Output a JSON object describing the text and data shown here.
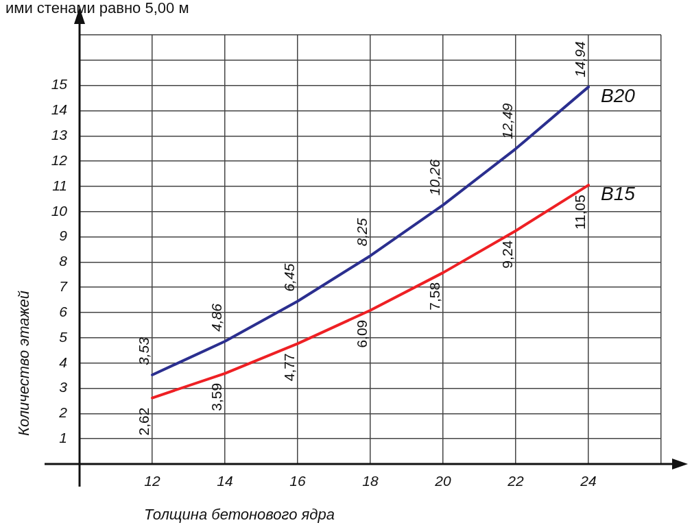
{
  "chart_data": {
    "type": "line",
    "title": "ими стенами равно 5,00 м",
    "xlabel": "Толщина бетонового ядра",
    "ylabel": "Количество этажей",
    "x": [
      12,
      14,
      16,
      18,
      20,
      22,
      24
    ],
    "series": [
      {
        "name": "B20",
        "color": "#2b2f8f",
        "values": [
          3.53,
          4.86,
          6.45,
          8.25,
          10.26,
          12.49,
          14.94
        ],
        "value_labels": [
          "3,53",
          "4,86",
          "6,45",
          "8,25",
          "10,26",
          "12,49",
          "14,94"
        ]
      },
      {
        "name": "B15",
        "color": "#ee2024",
        "values": [
          2.62,
          3.59,
          4.77,
          6.09,
          7.58,
          9.24,
          11.05
        ],
        "value_labels": [
          "2,62",
          "3,59",
          "4,77",
          "6,09",
          "7,58",
          "9,24",
          "11,05"
        ]
      }
    ],
    "xlim": [
      10,
      26
    ],
    "xticks": [
      {
        "value": 10,
        "label": null
      },
      12,
      14,
      16,
      18,
      20,
      22,
      24,
      {
        "value": 26,
        "label": null
      }
    ],
    "ylim": [
      0,
      17
    ],
    "yticks": [
      {
        "value": 0,
        "label": null
      },
      1,
      2,
      3,
      4,
      5,
      6,
      7,
      8,
      9,
      10,
      11,
      12,
      13,
      14,
      15,
      {
        "value": 16,
        "label": null
      },
      {
        "value": 17,
        "label": null
      }
    ],
    "grid": true,
    "legend": false,
    "marker": "none",
    "line_style": "solid"
  }
}
